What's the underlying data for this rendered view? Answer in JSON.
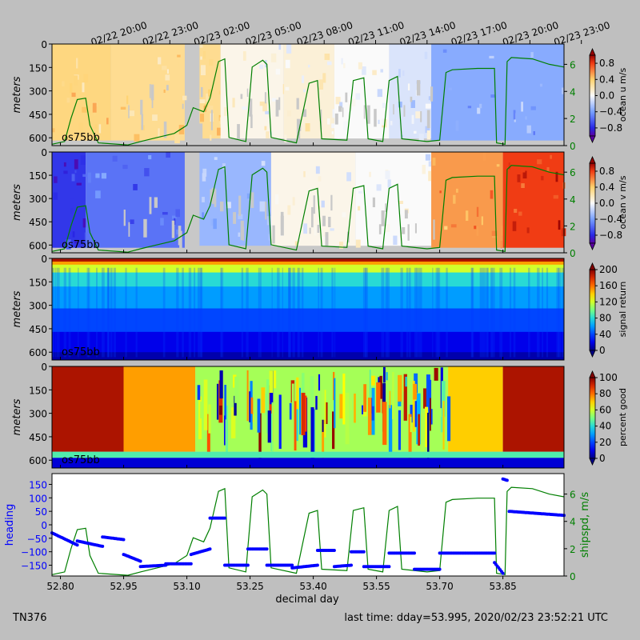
{
  "figure": {
    "top_time_ticks": [
      "02/22 20:00",
      "02/22 23:00",
      "02/23 02:00",
      "02/23 05:00",
      "02/23 08:00",
      "02/23 11:00",
      "02/23 14:00",
      "02/23 17:00",
      "02/23 20:00",
      "02/23 23:00"
    ],
    "footer_left": "TN376",
    "footer_right": "last time: dday=53.995,  2020/02/23 23:52:21 UTC",
    "xlabel": "decimal day",
    "instrument_label": "os75bb"
  },
  "colors": {
    "ship_speed": "#007f00",
    "heading": "#0000ff",
    "no_data": "#c8c8c8"
  },
  "chart_data": [
    {
      "type": "heatmap",
      "name": "ocean_u",
      "ylabel": "meters",
      "yticks": [
        0,
        150,
        300,
        450,
        600
      ],
      "ylim": [
        650,
        0
      ],
      "xlim": [
        52.78,
        53.995
      ],
      "colorbar_label": "ocean u m/s",
      "colorbar_ticks": [
        "0.8",
        "0.4",
        "0.0",
        "−0.4",
        "−0.8"
      ],
      "clim": [
        -1,
        1
      ],
      "colormap": "diverging",
      "right_axis_ticks": [
        0,
        2,
        4,
        6
      ],
      "right_axis_range": [
        0,
        7.5
      ],
      "annotation": "os75bb",
      "segments": [
        {
          "x": [
            52.78,
            52.92
          ],
          "v": 0.35
        },
        {
          "x": [
            52.92,
            53.095
          ],
          "v": 0.3
        },
        {
          "x": [
            53.095,
            53.13
          ],
          "v": null
        },
        {
          "x": [
            53.13,
            53.18
          ],
          "v": 0.3
        },
        {
          "x": [
            53.18,
            53.33
          ],
          "v": 0.05
        },
        {
          "x": [
            53.33,
            53.45
          ],
          "v": 0.1
        },
        {
          "x": [
            53.45,
            53.58
          ],
          "v": 0.0
        },
        {
          "x": [
            53.58,
            53.68
          ],
          "v": -0.1
        },
        {
          "x": [
            53.68,
            53.995
          ],
          "v": -0.35
        }
      ]
    },
    {
      "type": "heatmap",
      "name": "ocean_v",
      "ylabel": "meters",
      "yticks": [
        0,
        150,
        300,
        450,
        600
      ],
      "ylim": [
        650,
        0
      ],
      "xlim": [
        52.78,
        53.995
      ],
      "colorbar_label": "ocean v m/s",
      "colorbar_ticks": [
        "0.8",
        "0.4",
        "0.0",
        "−0.4",
        "−0.8"
      ],
      "clim": [
        -1,
        1
      ],
      "colormap": "diverging",
      "right_axis_ticks": [
        0,
        2,
        4,
        6
      ],
      "right_axis_range": [
        0,
        7.5
      ],
      "annotation": "os75bb",
      "segments": [
        {
          "x": [
            52.78,
            52.86
          ],
          "v": -0.75
        },
        {
          "x": [
            52.86,
            53.095
          ],
          "v": -0.55
        },
        {
          "x": [
            53.095,
            53.13
          ],
          "v": null
        },
        {
          "x": [
            53.13,
            53.3
          ],
          "v": -0.3
        },
        {
          "x": [
            53.3,
            53.5
          ],
          "v": 0.05
        },
        {
          "x": [
            53.5,
            53.68
          ],
          "v": 0.0
        },
        {
          "x": [
            53.68,
            53.85
          ],
          "v": 0.55
        },
        {
          "x": [
            53.85,
            53.995
          ],
          "v": 0.8
        }
      ]
    },
    {
      "type": "heatmap",
      "name": "signal_return",
      "ylabel": "meters",
      "yticks": [
        0,
        150,
        300,
        450,
        600
      ],
      "ylim": [
        650,
        0
      ],
      "xlim": [
        52.78,
        53.995
      ],
      "colorbar_label": "signal return",
      "colorbar_ticks": [
        "200",
        "160",
        "120",
        "80",
        "40",
        "0"
      ],
      "clim": [
        0,
        200
      ],
      "colormap": "jet",
      "annotation": "os75bb",
      "depth_profile": [
        {
          "depth": 0,
          "v": 150
        },
        {
          "depth": 40,
          "v": 120
        },
        {
          "depth": 90,
          "v": 80
        },
        {
          "depth": 180,
          "v": 60
        },
        {
          "depth": 320,
          "v": 40
        },
        {
          "depth": 470,
          "v": 20
        },
        {
          "depth": 600,
          "v": 8
        },
        {
          "depth": 650,
          "v": 0
        }
      ]
    },
    {
      "type": "heatmap",
      "name": "percent_good",
      "ylabel": "meters",
      "yticks": [
        0,
        150,
        300,
        450,
        600
      ],
      "ylim": [
        650,
        0
      ],
      "xlim": [
        52.78,
        53.995
      ],
      "colorbar_label": "percent good",
      "colorbar_ticks": [
        "100",
        "80",
        "60",
        "40",
        "20",
        "0"
      ],
      "clim": [
        0,
        100
      ],
      "colormap": "jet",
      "annotation": "os75bb",
      "segments": [
        {
          "x": [
            52.78,
            52.95
          ],
          "v": 95
        },
        {
          "x": [
            52.95,
            53.12
          ],
          "v": 75
        },
        {
          "x": [
            53.12,
            53.72
          ],
          "v": 55
        },
        {
          "x": [
            53.72,
            53.85
          ],
          "v": 70
        },
        {
          "x": [
            53.85,
            53.995
          ],
          "v": 95
        }
      ]
    },
    {
      "type": "scatter",
      "name": "heading_shipspd",
      "xlabel": "decimal day",
      "xticks": [
        "52.80",
        "52.95",
        "53.10",
        "53.25",
        "53.40",
        "53.55",
        "53.70",
        "53.85"
      ],
      "xtick_values": [
        52.8,
        52.95,
        53.1,
        53.25,
        53.4,
        53.55,
        53.7,
        53.85
      ],
      "xlim": [
        52.78,
        53.995
      ],
      "ylabel": "heading",
      "yticks": [
        "150",
        "100",
        "50",
        "0",
        "−50",
        "−100",
        "−150"
      ],
      "ylim": [
        -190,
        190
      ],
      "right_ylabel": "shipspd, m/s",
      "right_yticks": [
        0,
        2,
        4,
        6
      ],
      "right_ylim": [
        0,
        7.5
      ],
      "heading_segments": [
        {
          "x": [
            52.78,
            52.84
          ],
          "y": [
            -30,
            -75
          ]
        },
        {
          "x": [
            52.84,
            52.9
          ],
          "y": [
            -60,
            -80
          ]
        },
        {
          "x": [
            52.9,
            52.95
          ],
          "y": [
            -45,
            -55
          ]
        },
        {
          "x": [
            52.95,
            52.99
          ],
          "y": [
            -110,
            -135
          ]
        },
        {
          "x": [
            52.99,
            53.05
          ],
          "y": [
            -155,
            -150
          ]
        },
        {
          "x": [
            53.05,
            53.11
          ],
          "y": [
            -145,
            -145
          ]
        },
        {
          "x": [
            53.11,
            53.155
          ],
          "y": [
            -110,
            -90
          ]
        },
        {
          "x": [
            53.155,
            53.19
          ],
          "y": [
            25,
            25
          ]
        },
        {
          "x": [
            53.19,
            53.245
          ],
          "y": [
            -150,
            -150
          ]
        },
        {
          "x": [
            53.245,
            53.29
          ],
          "y": [
            -90,
            -90
          ]
        },
        {
          "x": [
            53.29,
            53.35
          ],
          "y": [
            -150,
            -150
          ]
        },
        {
          "x": [
            53.35,
            53.41
          ],
          "y": [
            -160,
            -150
          ]
        },
        {
          "x": [
            53.41,
            53.45
          ],
          "y": [
            -95,
            -95
          ]
        },
        {
          "x": [
            53.45,
            53.49
          ],
          "y": [
            -155,
            -150
          ]
        },
        {
          "x": [
            53.49,
            53.52
          ],
          "y": [
            -100,
            -100
          ]
        },
        {
          "x": [
            53.52,
            53.58
          ],
          "y": [
            -155,
            -155
          ]
        },
        {
          "x": [
            53.58,
            53.64
          ],
          "y": [
            -105,
            -105
          ]
        },
        {
          "x": [
            53.64,
            53.7
          ],
          "y": [
            -165,
            -165
          ]
        },
        {
          "x": [
            53.7,
            53.83
          ],
          "y": [
            -105,
            -105
          ]
        },
        {
          "x": [
            53.83,
            53.85
          ],
          "y": [
            -140,
            -180
          ]
        },
        {
          "x": [
            53.85,
            53.86
          ],
          "y": [
            170,
            165
          ]
        },
        {
          "x": [
            53.865,
            53.995
          ],
          "y": [
            50,
            35
          ]
        }
      ],
      "shipspd": [
        [
          52.78,
          0.1
        ],
        [
          52.81,
          0.3
        ],
        [
          52.825,
          2.0
        ],
        [
          52.84,
          3.4
        ],
        [
          52.86,
          3.5
        ],
        [
          52.87,
          1.5
        ],
        [
          52.89,
          0.2
        ],
        [
          52.96,
          0.05
        ],
        [
          52.99,
          0.3
        ],
        [
          53.03,
          0.6
        ],
        [
          53.07,
          0.9
        ],
        [
          53.1,
          1.5
        ],
        [
          53.115,
          2.8
        ],
        [
          53.14,
          2.5
        ],
        [
          53.155,
          3.5
        ],
        [
          53.175,
          6.2
        ],
        [
          53.19,
          6.4
        ],
        [
          53.2,
          0.6
        ],
        [
          53.24,
          0.3
        ],
        [
          53.255,
          5.8
        ],
        [
          53.28,
          6.3
        ],
        [
          53.29,
          6.0
        ],
        [
          53.3,
          0.6
        ],
        [
          53.36,
          0.2
        ],
        [
          53.39,
          4.6
        ],
        [
          53.41,
          4.8
        ],
        [
          53.42,
          0.5
        ],
        [
          53.48,
          0.4
        ],
        [
          53.495,
          4.8
        ],
        [
          53.52,
          5.0
        ],
        [
          53.53,
          0.5
        ],
        [
          53.565,
          0.3
        ],
        [
          53.58,
          4.8
        ],
        [
          53.6,
          5.1
        ],
        [
          53.61,
          0.5
        ],
        [
          53.67,
          0.3
        ],
        [
          53.7,
          0.4
        ],
        [
          53.715,
          5.4
        ],
        [
          53.73,
          5.6
        ],
        [
          53.79,
          5.7
        ],
        [
          53.83,
          5.7
        ],
        [
          53.835,
          0.2
        ],
        [
          53.855,
          0.1
        ],
        [
          53.86,
          6.2
        ],
        [
          53.87,
          6.5
        ],
        [
          53.92,
          6.4
        ],
        [
          53.96,
          6.0
        ],
        [
          53.995,
          5.8
        ]
      ]
    }
  ]
}
